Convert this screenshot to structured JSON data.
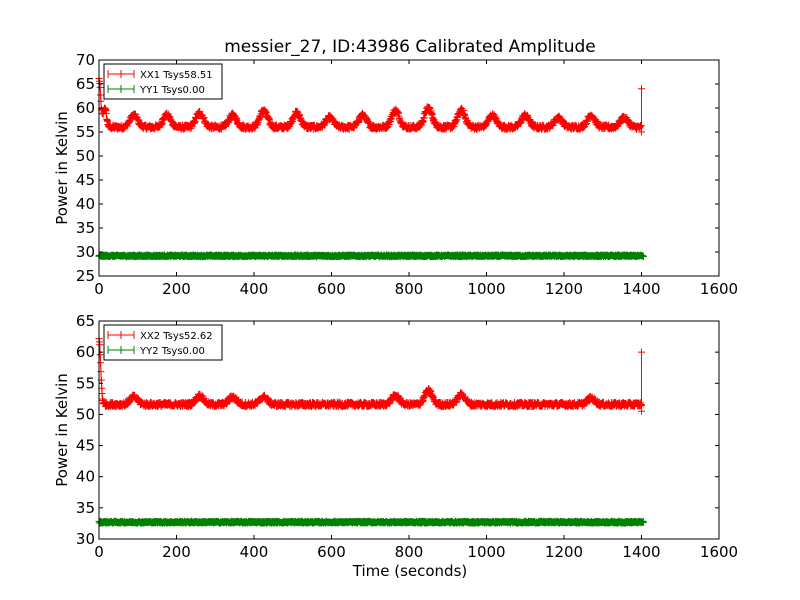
{
  "chart_data": [
    {
      "type": "line",
      "title": "messier_27, ID:43986 Calibrated Amplitude",
      "xlabel": "",
      "ylabel": "Power in Kelvin",
      "xlim": [
        0,
        1600
      ],
      "ylim": [
        25,
        70
      ],
      "xticks": [
        0,
        200,
        400,
        600,
        800,
        1000,
        1200,
        1400,
        1600
      ],
      "yticks": [
        25,
        30,
        35,
        40,
        45,
        50,
        55,
        60,
        65,
        70
      ],
      "legend": "top-left",
      "grid": false,
      "series": [
        {
          "name": "XX1 Tsys58.51",
          "color": "#ff0000",
          "marker": "+",
          "x_range": [
            0,
            1400
          ],
          "baseline": 56.0,
          "noise": 0.45,
          "peaks": [
            [
              0,
              66,
              6
            ],
            [
              15,
              60,
              6
            ],
            [
              90,
              58.5,
              14
            ],
            [
              175,
              58.5,
              14
            ],
            [
              260,
              59,
              14
            ],
            [
              345,
              58.5,
              14
            ],
            [
              425,
              59.5,
              14
            ],
            [
              510,
              59,
              14
            ],
            [
              595,
              58,
              14
            ],
            [
              680,
              58.5,
              14
            ],
            [
              765,
              59.5,
              14
            ],
            [
              850,
              60,
              14
            ],
            [
              935,
              59.5,
              14
            ],
            [
              1015,
              58.5,
              14
            ],
            [
              1100,
              58.5,
              14
            ],
            [
              1185,
              58,
              14
            ],
            [
              1270,
              58.5,
              14
            ],
            [
              1355,
              58,
              14
            ]
          ],
          "end_spike": [
            55,
            64
          ]
        },
        {
          "name": "YY1 Tsys0.00",
          "color": "#008000",
          "marker": "+",
          "x_range": [
            0,
            1405
          ],
          "baseline": 29.2,
          "noise": 0.18,
          "peaks": []
        }
      ]
    },
    {
      "type": "line",
      "title": "",
      "xlabel": "Time (seconds)",
      "ylabel": "Power in Kelvin",
      "xlim": [
        0,
        1600
      ],
      "ylim": [
        30,
        65
      ],
      "xticks": [
        0,
        200,
        400,
        600,
        800,
        1000,
        1200,
        1400,
        1600
      ],
      "yticks": [
        30,
        35,
        40,
        45,
        50,
        55,
        60,
        65
      ],
      "legend": "top-left",
      "grid": false,
      "series": [
        {
          "name": "XX2 Tsys52.62",
          "color": "#ff0000",
          "marker": "+",
          "x_range": [
            0,
            1400
          ],
          "baseline": 51.6,
          "noise": 0.35,
          "peaks": [
            [
              0,
              62,
              6
            ],
            [
              90,
              52.8,
              14
            ],
            [
              260,
              53,
              14
            ],
            [
              345,
              52.8,
              14
            ],
            [
              425,
              52.8,
              14
            ],
            [
              765,
              53,
              14
            ],
            [
              850,
              53.8,
              14
            ],
            [
              935,
              53.2,
              14
            ],
            [
              1270,
              52.6,
              14
            ]
          ],
          "end_spike": [
            50.5,
            60
          ]
        },
        {
          "name": "YY2 Tsys0.00",
          "color": "#008000",
          "marker": "+",
          "x_range": [
            0,
            1405
          ],
          "baseline": 32.7,
          "noise": 0.15,
          "peaks": []
        }
      ]
    }
  ]
}
